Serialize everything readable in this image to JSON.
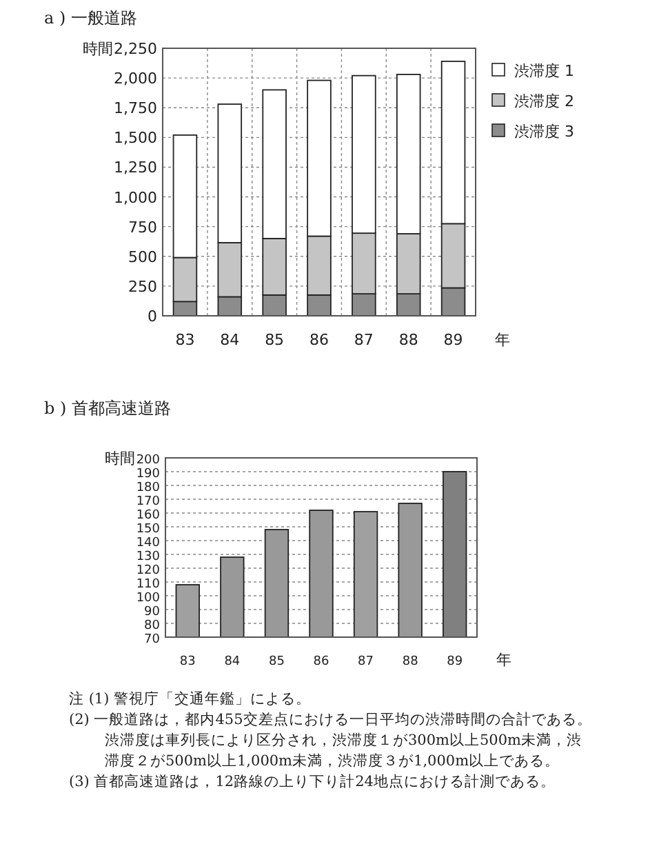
{
  "chart_data": [
    {
      "type": "bar",
      "title": "a ) 一般道路",
      "ylabel": "時間",
      "xlabel": "年",
      "categories": [
        "83",
        "84",
        "85",
        "86",
        "87",
        "88",
        "89"
      ],
      "stacked": true,
      "legend": "right",
      "grid": true,
      "series": [
        {
          "name": "渋滞度 3",
          "color": "#8c8c8c",
          "values": [
            120,
            160,
            175,
            175,
            185,
            185,
            235
          ]
        },
        {
          "name": "渋滞度 2",
          "color": "#c4c4c4",
          "values": [
            370,
            455,
            475,
            495,
            510,
            505,
            540
          ]
        },
        {
          "name": "渋滞度 1",
          "color": "#ffffff",
          "values": [
            1030,
            1165,
            1250,
            1310,
            1325,
            1340,
            1365
          ]
        }
      ],
      "ylim": [
        0,
        2250
      ],
      "yticks": [
        0,
        250,
        500,
        750,
        {
          "value": 1000,
          "label": "1,000"
        },
        {
          "value": 1250,
          "label": "1,250"
        },
        {
          "value": 1500,
          "label": "1,500"
        },
        {
          "value": 1750,
          "label": "1,750"
        },
        {
          "value": 2000,
          "label": "2,000"
        },
        {
          "value": 2250,
          "label": "2,250"
        }
      ]
    },
    {
      "type": "bar",
      "title": "b ) 首都高速道路",
      "ylabel": "時間",
      "xlabel": "年",
      "categories": [
        "83",
        "84",
        "85",
        "86",
        "87",
        "88",
        "89"
      ],
      "grid": "y",
      "colors": [
        "#a0a0a0",
        "#999999",
        "#999999",
        "#999999",
        "#a0a0a0",
        "#999999",
        "#808080"
      ],
      "values": [
        108,
        128,
        148,
        162,
        161,
        167,
        190
      ],
      "ylim": [
        70,
        200
      ],
      "yticks": [
        70,
        80,
        90,
        100,
        110,
        120,
        130,
        140,
        150,
        160,
        170,
        180,
        190,
        200
      ],
      "annotations": [
        "注 (1) 警視庁「交通年鑑」による。",
        "(2) 一般道路は，都内455交差点における一日平均の渋滞時間の合計である。渋滞度は車列長により区分され，渋滞度１が300m以上500m未満，渋滞度２が500m以上1,000m未満，渋滞度３が1,000m以上である。",
        "(3) 首都高速道路は，12路線の上り下り計24地点における計測である。"
      ]
    }
  ]
}
